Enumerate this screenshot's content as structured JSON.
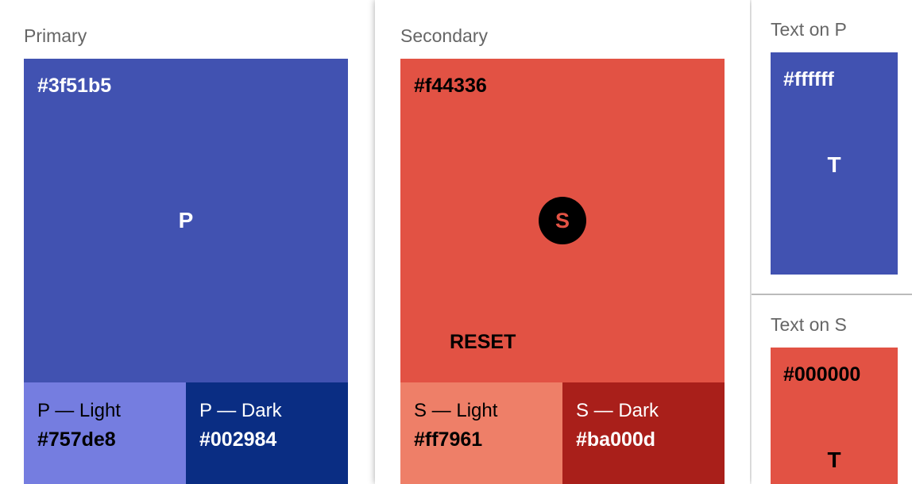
{
  "primary": {
    "title": "Primary",
    "hex": "#3f51b5",
    "letter": "P",
    "light_label": "P — Light",
    "light_hex": "#757de8",
    "dark_label": "P — Dark",
    "dark_hex": "#002984"
  },
  "secondary": {
    "title": "Secondary",
    "hex": "#f44336",
    "letter": "S",
    "reset_label": "RESET",
    "light_label": "S — Light",
    "light_hex": "#ff7961",
    "dark_label": "S — Dark",
    "dark_hex": "#ba000d"
  },
  "text_on_p": {
    "title": "Text on P",
    "hex": "#ffffff",
    "letter": "T"
  },
  "text_on_s": {
    "title": "Text on S",
    "hex": "#000000",
    "letter": "T"
  },
  "colors": {
    "primary": "#4152b1",
    "primary_light": "#757de0",
    "primary_dark": "#0a2d83",
    "secondary": "#e25244",
    "secondary_light": "#ee7f68",
    "secondary_dark": "#a91f1a"
  }
}
